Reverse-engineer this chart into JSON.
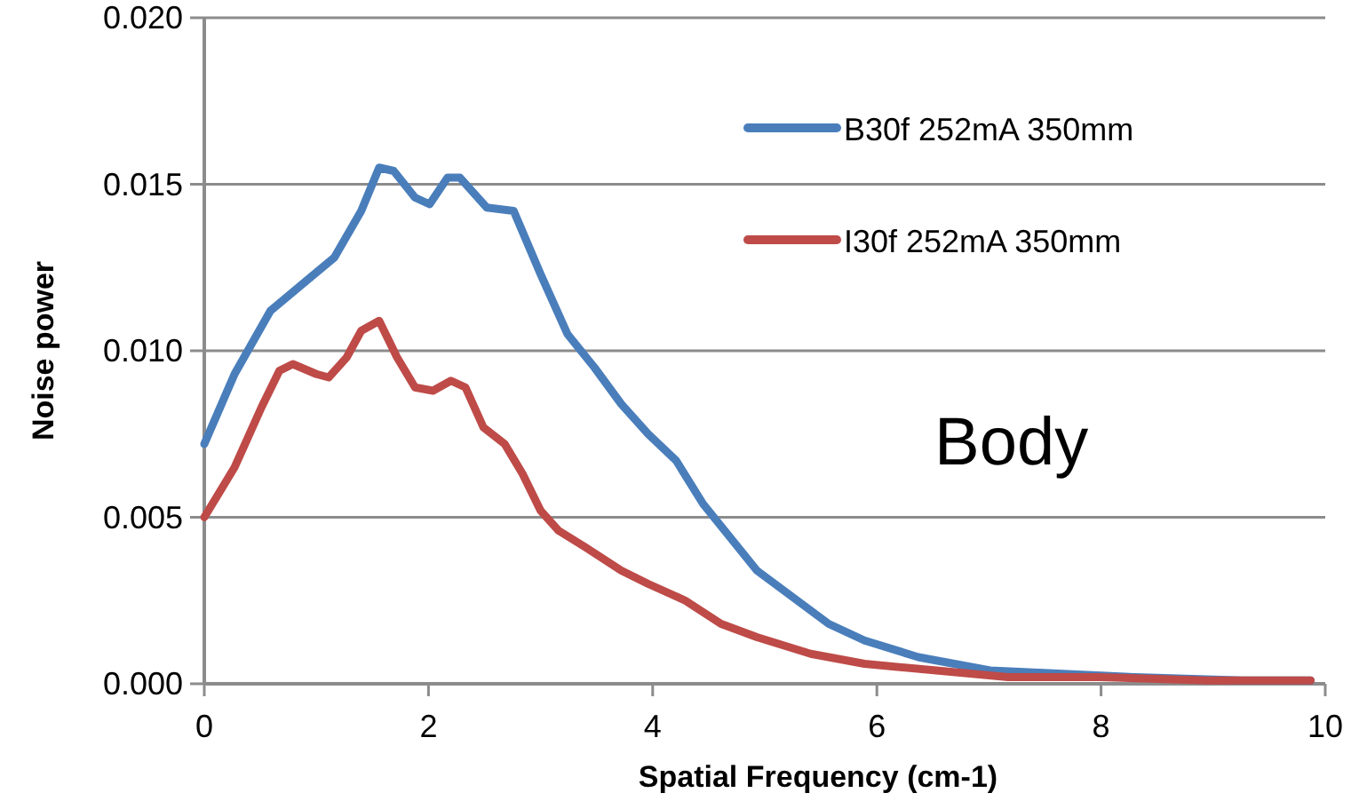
{
  "chart_data": {
    "type": "line",
    "xlabel": "Spatial Frequency (cm-1)",
    "ylabel": "Noise power",
    "annotations": [
      "Body"
    ],
    "xlim": [
      0,
      10
    ],
    "xticks": [
      0,
      2,
      4,
      6,
      8,
      10
    ],
    "ylim": [
      0,
      0.02
    ],
    "yticks": [
      {
        "value": 0,
        "label": "0.000"
      },
      {
        "value": 0.005,
        "label": "0.005"
      },
      {
        "value": 0.01,
        "label": "0.010"
      },
      {
        "value": 0.015,
        "label": "0.015"
      },
      {
        "value": 0.02,
        "label": "0.020"
      }
    ],
    "grid": "y",
    "legend": "top right",
    "marker": "none",
    "line_style": "solid",
    "series": [
      {
        "name": "B30f 252mA 350mm",
        "color": "#4a7ebb",
        "x": [
          0,
          0.27,
          0.59,
          0.91,
          1.16,
          1.4,
          1.56,
          1.69,
          1.88,
          2.01,
          2.17,
          2.28,
          2.52,
          2.76,
          3.0,
          3.24,
          3.48,
          3.72,
          3.96,
          4.21,
          4.45,
          4.69,
          4.93,
          5.25,
          5.57,
          5.89,
          6.37,
          7.01,
          7.66,
          8.3,
          9.26,
          9.87
        ],
        "values": [
          0.0072,
          0.0093,
          0.0112,
          0.0121,
          0.0128,
          0.0142,
          0.0155,
          0.0154,
          0.0146,
          0.0144,
          0.0152,
          0.0152,
          0.0143,
          0.0142,
          0.0123,
          0.0105,
          0.0095,
          0.0084,
          0.0075,
          0.0067,
          0.0054,
          0.0044,
          0.0034,
          0.0026,
          0.0018,
          0.0013,
          0.0008,
          0.0004,
          0.0003,
          0.0002,
          0.0001,
          0.0001
        ]
      },
      {
        "name": "I30f 252mA 350mm",
        "color": "#be4b48",
        "x": [
          0,
          0.27,
          0.51,
          0.67,
          0.79,
          1.0,
          1.11,
          1.27,
          1.4,
          1.56,
          1.72,
          1.88,
          2.04,
          2.2,
          2.33,
          2.49,
          2.68,
          2.84,
          3.0,
          3.16,
          3.4,
          3.72,
          3.96,
          4.29,
          4.61,
          4.93,
          5.41,
          5.89,
          6.53,
          7.17,
          7.98,
          8.94,
          9.87
        ],
        "values": [
          0.005,
          0.0065,
          0.0083,
          0.0094,
          0.0096,
          0.0093,
          0.0092,
          0.0098,
          0.0106,
          0.0109,
          0.0098,
          0.0089,
          0.0088,
          0.0091,
          0.0089,
          0.0077,
          0.0072,
          0.0063,
          0.0052,
          0.0046,
          0.0041,
          0.0034,
          0.003,
          0.0025,
          0.0018,
          0.0014,
          0.0009,
          0.0006,
          0.0004,
          0.0002,
          0.0002,
          0.0001,
          0.0001
        ]
      }
    ]
  }
}
